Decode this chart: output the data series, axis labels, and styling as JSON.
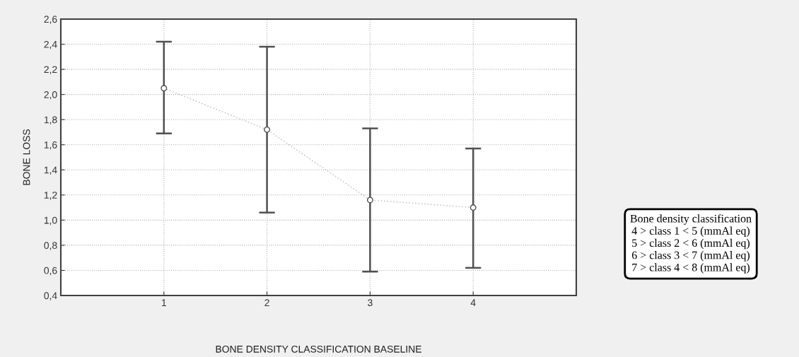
{
  "chart_data": {
    "type": "line",
    "xlabel": "BONE DENSITY CLASSIFICATION BASELINE",
    "ylabel": "BONE LOSS",
    "x": [
      1,
      2,
      3,
      4
    ],
    "series": [
      {
        "color": "#c8c8c8",
        "values": [
          2.05,
          1.72,
          1.16,
          1.1
        ],
        "errors": [
          [
            1.69,
            2.42
          ],
          [
            1.06,
            2.38
          ],
          [
            0.59,
            1.73
          ],
          [
            0.62,
            1.57
          ]
        ]
      }
    ],
    "marker": "circle",
    "line_style": "dotted",
    "xlim": [
      0,
      5
    ],
    "xticks": [
      1,
      2,
      3,
      4
    ],
    "ylim": [
      0.4,
      2.6
    ],
    "yticks": [
      {
        "value": 0.4,
        "label": "0,4"
      },
      {
        "value": 0.6,
        "label": "0,6"
      },
      {
        "value": 0.8,
        "label": "0,8"
      },
      {
        "value": 1.0,
        "label": "1,0"
      },
      {
        "value": 1.2,
        "label": "1,2"
      },
      {
        "value": 1.4,
        "label": "1,4"
      },
      {
        "value": 1.6,
        "label": "1,6"
      },
      {
        "value": 1.8,
        "label": "1,8"
      },
      {
        "value": 2.0,
        "label": "2,0"
      },
      {
        "value": 2.2,
        "label": "2,2"
      },
      {
        "value": 2.4,
        "label": "2,4"
      },
      {
        "value": 2.6,
        "label": "2,6"
      }
    ],
    "grid": true,
    "annotations": [
      "Bone density classification\n4 > class 1 < 5 (mmAl eq)\n5 > class 2 < 6 (mmAl eq)\n6 > class 3 < 7 (mmAl eq)\n7 > class 4 < 8 (mmAl eq)"
    ]
  }
}
